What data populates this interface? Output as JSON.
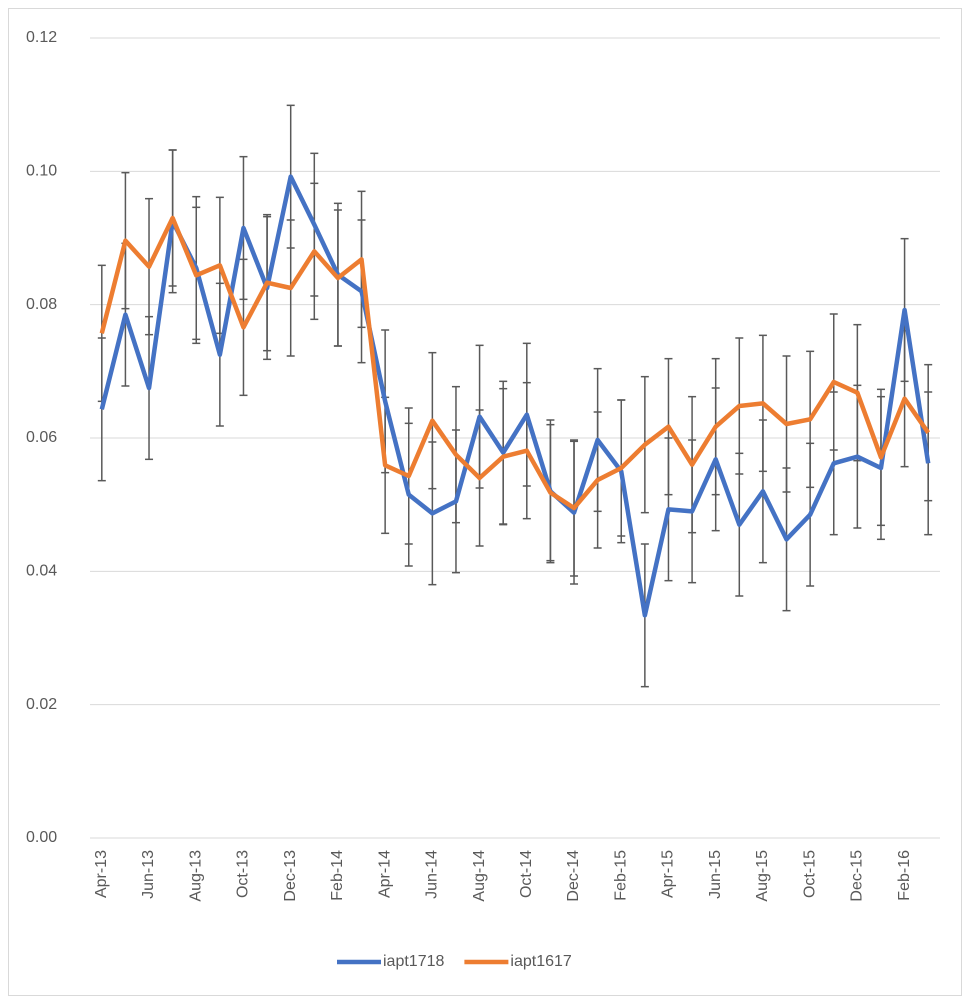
{
  "chart_data": {
    "type": "line",
    "categories": [
      "Apr-13",
      null,
      "Jun-13",
      null,
      "Aug-13",
      null,
      "Oct-13",
      null,
      "Dec-13",
      null,
      "Feb-14",
      null,
      "Apr-14",
      null,
      "Jun-14",
      null,
      "Aug-14",
      null,
      "Oct-14",
      null,
      "Dec-14",
      null,
      "Feb-15",
      null,
      "Apr-15",
      null,
      "Jun-15",
      null,
      "Aug-15",
      null,
      "Oct-15",
      null,
      "Dec-15",
      null,
      "Feb-16",
      null
    ],
    "series": [
      {
        "name": "iapt1718",
        "color": "#4472c4",
        "values": [
          0.0643,
          0.0785,
          0.0675,
          0.0925,
          0.0855,
          0.0725,
          0.0915,
          0.0825,
          0.0992,
          0.092,
          0.0845,
          0.082,
          0.0655,
          0.0515,
          0.0487,
          0.0505,
          0.0632,
          0.0578,
          0.0635,
          0.052,
          0.0488,
          0.0597,
          0.055,
          0.0334,
          0.0493,
          0.049,
          0.0568,
          0.047,
          0.052,
          0.0448,
          0.0485,
          0.0562,
          0.0572,
          0.0555,
          0.0792,
          0.0562
        ],
        "errors": [
          0.0107,
          0.0107,
          0.0107,
          0.0107,
          0.0107,
          0.0107,
          0.0107,
          0.0107,
          0.0107,
          0.0107,
          0.0107,
          0.0107,
          0.0107,
          0.0107,
          0.0107,
          0.0107,
          0.0107,
          0.0107,
          0.0107,
          0.0107,
          0.0107,
          0.0107,
          0.0107,
          0.0107,
          0.0107,
          0.0107,
          0.0107,
          0.0107,
          0.0107,
          0.0107,
          0.0107,
          0.0107,
          0.0107,
          0.0107,
          0.0107,
          0.0107
        ]
      },
      {
        "name": "iapt1617",
        "color": "#ed7d31",
        "values": [
          0.0757,
          0.0896,
          0.0857,
          0.093,
          0.0844,
          0.0859,
          0.0766,
          0.0833,
          0.0825,
          0.088,
          0.084,
          0.0868,
          0.0559,
          0.0543,
          0.0626,
          0.0575,
          0.054,
          0.0572,
          0.0581,
          0.0518,
          0.0495,
          0.0537,
          0.0555,
          0.059,
          0.0617,
          0.056,
          0.0617,
          0.0648,
          0.0652,
          0.0621,
          0.0628,
          0.0684,
          0.0668,
          0.0571,
          0.0659,
          0.0608
        ],
        "errors": [
          0.0102,
          0.0102,
          0.0102,
          0.0102,
          0.0102,
          0.0102,
          0.0102,
          0.0102,
          0.0102,
          0.0102,
          0.0102,
          0.0102,
          0.0102,
          0.0102,
          0.0102,
          0.0102,
          0.0102,
          0.0102,
          0.0102,
          0.0102,
          0.0102,
          0.0102,
          0.0102,
          0.0102,
          0.0102,
          0.0102,
          0.0102,
          0.0102,
          0.0102,
          0.0102,
          0.0102,
          0.0102,
          0.0102,
          0.0102,
          0.0102,
          0.0102
        ]
      }
    ],
    "error_bar_color": "#595959",
    "ylim": [
      0,
      0.12
    ],
    "yticks": [
      {
        "value": 0,
        "label": "0.00"
      },
      0.02,
      0.04,
      0.06,
      0.08,
      {
        "value": 0.1,
        "label": "0.10"
      },
      0.12
    ],
    "grid": true,
    "legend": "bottom"
  }
}
